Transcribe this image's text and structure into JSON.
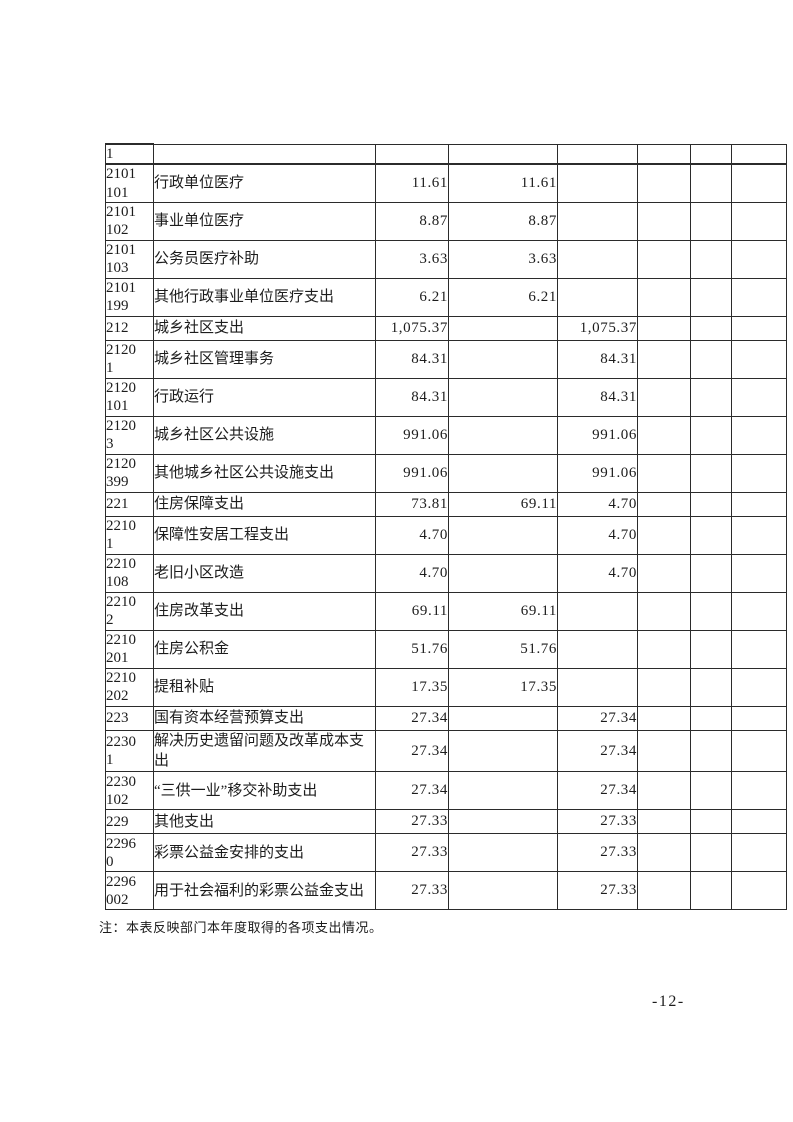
{
  "document": {
    "note": "注：本表反映部门本年度取得的各项支出情况。",
    "page_number": "-12-"
  },
  "table": {
    "rows": [
      {
        "size": "first",
        "code": "1",
        "name": "",
        "v1": "",
        "v2": "",
        "v3": ""
      },
      {
        "size": "tall",
        "code": "2101\n101",
        "name": "行政单位医疗",
        "v1": "11.61",
        "v2": "11.61",
        "v3": ""
      },
      {
        "size": "tall",
        "code": "2101\n102",
        "name": "事业单位医疗",
        "v1": "8.87",
        "v2": "8.87",
        "v3": ""
      },
      {
        "size": "tall",
        "code": "2101\n103",
        "name": "公务员医疗补助",
        "v1": "3.63",
        "v2": "3.63",
        "v3": ""
      },
      {
        "size": "tall",
        "code": "2101\n199",
        "name": "其他行政事业单位医疗支出",
        "v1": "6.21",
        "v2": "6.21",
        "v3": ""
      },
      {
        "size": "short",
        "code": "212",
        "name": "城乡社区支出",
        "v1": "1,075.37",
        "v2": "",
        "v3": "1,075.37"
      },
      {
        "size": "tall",
        "code": "2120\n1",
        "name": "城乡社区管理事务",
        "v1": "84.31",
        "v2": "",
        "v3": "84.31"
      },
      {
        "size": "tall",
        "code": "2120\n101",
        "name": "行政运行",
        "v1": "84.31",
        "v2": "",
        "v3": "84.31"
      },
      {
        "size": "tall",
        "code": "2120\n3",
        "name": "城乡社区公共设施",
        "v1": "991.06",
        "v2": "",
        "v3": "991.06"
      },
      {
        "size": "tall",
        "code": "2120\n399",
        "name": "其他城乡社区公共设施支出",
        "v1": "991.06",
        "v2": "",
        "v3": "991.06"
      },
      {
        "size": "short",
        "code": "221",
        "name": "住房保障支出",
        "v1": "73.81",
        "v2": "69.11",
        "v3": "4.70"
      },
      {
        "size": "tall",
        "code": "2210\n1",
        "name": "保障性安居工程支出",
        "v1": "4.70",
        "v2": "",
        "v3": "4.70"
      },
      {
        "size": "tall",
        "code": "2210\n108",
        "name": "老旧小区改造",
        "v1": "4.70",
        "v2": "",
        "v3": "4.70"
      },
      {
        "size": "tall",
        "code": "2210\n2",
        "name": "住房改革支出",
        "v1": "69.11",
        "v2": "69.11",
        "v3": ""
      },
      {
        "size": "tall",
        "code": "2210\n201",
        "name": "住房公积金",
        "v1": "51.76",
        "v2": "51.76",
        "v3": ""
      },
      {
        "size": "tall",
        "code": "2210\n202",
        "name": "提租补贴",
        "v1": "17.35",
        "v2": "17.35",
        "v3": ""
      },
      {
        "size": "short",
        "code": "223",
        "name": "国有资本经营预算支出",
        "v1": "27.34",
        "v2": "",
        "v3": "27.34"
      },
      {
        "size": "xtall",
        "code": "2230\n1",
        "name": "解决历史遗留问题及改革成本支出",
        "v1": "27.34",
        "v2": "",
        "v3": "27.34"
      },
      {
        "size": "tall",
        "code": "2230\n102",
        "name": "“三供一业”移交补助支出",
        "v1": "27.34",
        "v2": "",
        "v3": "27.34"
      },
      {
        "size": "short",
        "code": "229",
        "name": "其他支出",
        "v1": "27.33",
        "v2": "",
        "v3": "27.33"
      },
      {
        "size": "tall",
        "code": "2296\n0",
        "name": "彩票公益金安排的支出",
        "v1": "27.33",
        "v2": "",
        "v3": "27.33"
      },
      {
        "size": "tall",
        "code": "2296\n002",
        "name": "用于社会福利的彩票公益金支出",
        "v1": "27.33",
        "v2": "",
        "v3": "27.33"
      }
    ]
  }
}
